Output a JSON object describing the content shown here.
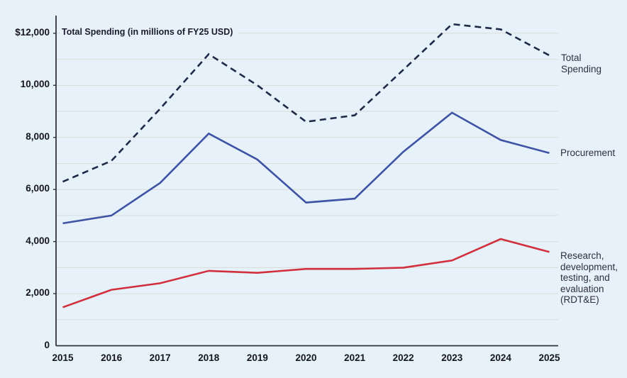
{
  "colors": {
    "background": "#e6f1f9",
    "gridline": "#d9dcd8",
    "axis": "#31343b",
    "tick_text": "#15151f",
    "title_text": "#1b1b2f",
    "label_text": "#30303f"
  },
  "chart_data": {
    "type": "line",
    "title": "Total Spending (in millions of FY25 USD)",
    "xlabel": "",
    "ylabel": "Total Spending (in millions of FY25 USD)",
    "x": [
      "2015",
      "2016",
      "2017",
      "2018",
      "2019",
      "2020",
      "2021",
      "2022",
      "2023",
      "2024",
      "2025"
    ],
    "ylim": [
      0,
      12000
    ],
    "gridline_step": 1000,
    "grid": true,
    "legend_position": "right-of-line-ends",
    "yticks": [
      {
        "value": 0,
        "label": "0"
      },
      {
        "value": 2000,
        "label": "2,000"
      },
      {
        "value": 4000,
        "label": "4,000"
      },
      {
        "value": 6000,
        "label": "6,000"
      },
      {
        "value": 8000,
        "label": "8,000"
      },
      {
        "value": 10000,
        "label": "10,000"
      },
      {
        "value": 12000,
        "label": "$12,000"
      }
    ],
    "series": [
      {
        "name": "Total Spending",
        "label_lines": [
          "Total",
          "Spending"
        ],
        "color": "#1e2a47",
        "dashed": true,
        "values": [
          6300,
          7100,
          9100,
          11200,
          10000,
          8600,
          8850,
          10600,
          12350,
          12150,
          11150
        ]
      },
      {
        "name": "Procurement",
        "label_lines": [
          "Procurement"
        ],
        "color": "#3f53a5",
        "dashed": false,
        "values": [
          4700,
          5000,
          6250,
          8150,
          7150,
          5500,
          5650,
          7450,
          8950,
          7900,
          7400
        ]
      },
      {
        "name": "Research, development, testing, and evaluation (RDT&E)",
        "label_lines": [
          "Research,",
          "development,",
          "testing, and",
          "evaluation",
          "(RDT&E)"
        ],
        "color": "#d2303e",
        "dashed": false,
        "values": [
          1475,
          2150,
          2400,
          2875,
          2800,
          2950,
          2950,
          3000,
          3275,
          4100,
          3600
        ]
      }
    ]
  }
}
